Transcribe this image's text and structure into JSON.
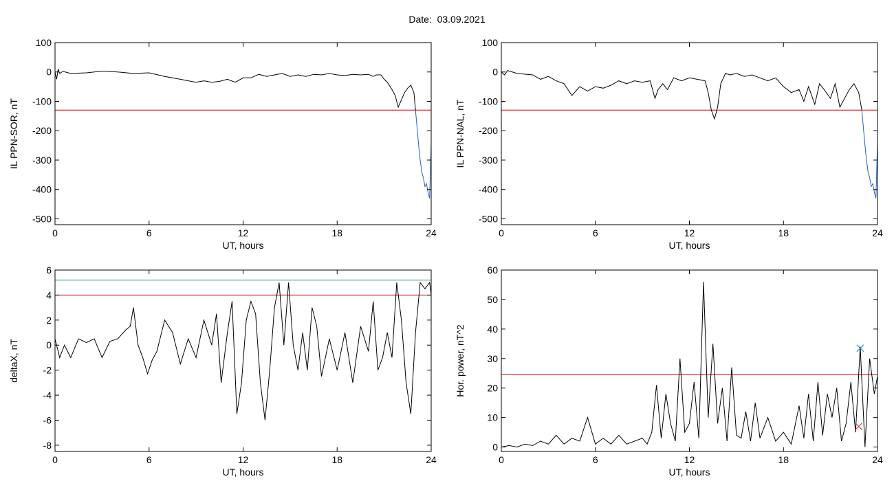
{
  "header": {
    "date_label": "Date:",
    "date_value": "03.09.2021"
  },
  "chart_data": [
    {
      "type": "line",
      "title": "",
      "xlabel": "UT, hours",
      "ylabel": "IL PPN-SOR, nT",
      "xlim": [
        0,
        24
      ],
      "ylim": [
        -520,
        100
      ],
      "xticks": [
        0,
        6,
        12,
        18,
        24
      ],
      "yticks": [
        100,
        0,
        -100,
        -200,
        -300,
        -400,
        -500
      ],
      "grid": false,
      "series": [
        {
          "color": "#000000",
          "x": [
            0,
            0.1,
            0.2,
            0.3,
            0.5,
            1,
            2,
            3,
            4,
            5,
            6,
            7,
            8,
            8.5,
            9,
            9.5,
            10,
            10.5,
            11,
            11.5,
            12,
            12.5,
            13,
            13.5,
            14,
            14.5,
            15,
            15.5,
            16,
            16.5,
            17,
            17.5,
            18,
            18.5,
            19,
            19.5,
            20,
            20.3,
            20.5,
            20.8,
            21,
            21.2,
            21.5,
            21.7,
            21.9,
            22.1,
            22.3,
            22.5,
            22.7,
            22.9,
            23
          ],
          "y": [
            0,
            -25,
            10,
            -5,
            2,
            -5,
            -3,
            3,
            0,
            -5,
            -3,
            -15,
            -25,
            -30,
            -35,
            -30,
            -35,
            -32,
            -25,
            -35,
            -20,
            -20,
            -8,
            -15,
            -10,
            -5,
            -15,
            -10,
            -15,
            -8,
            -10,
            -5,
            -10,
            -12,
            -8,
            -10,
            -8,
            -15,
            -10,
            -10,
            -25,
            -35,
            -60,
            -80,
            -120,
            -95,
            -70,
            -55,
            -45,
            -70,
            -130
          ]
        },
        {
          "color": "#1f5fcf",
          "x": [
            23,
            23.1,
            23.2,
            23.3,
            23.4,
            23.5,
            23.6,
            23.7,
            23.8,
            23.9,
            24
          ],
          "y": [
            -130,
            -190,
            -250,
            -300,
            -340,
            -360,
            -390,
            -380,
            -410,
            -430,
            -240
          ]
        }
      ],
      "hlines": [
        {
          "y": -130,
          "color": "#d00000"
        }
      ]
    },
    {
      "type": "line",
      "title": "",
      "xlabel": "UT, hours",
      "ylabel": "IL PPN-NAL, nT",
      "xlim": [
        0,
        24
      ],
      "ylim": [
        -520,
        100
      ],
      "xticks": [
        0,
        6,
        12,
        18,
        24
      ],
      "yticks": [
        100,
        0,
        -100,
        -200,
        -300,
        -400,
        -500
      ],
      "grid": false,
      "series": [
        {
          "color": "#000000",
          "x": [
            0,
            0.2,
            0.4,
            1,
            2,
            2.5,
            3,
            3.5,
            4,
            4.5,
            5,
            5.5,
            6,
            6.5,
            7,
            7.5,
            8,
            8.5,
            9,
            9.5,
            9.8,
            10,
            10.3,
            10.6,
            11,
            11.5,
            12,
            12.5,
            13,
            13.2,
            13.4,
            13.6,
            13.8,
            14,
            14.3,
            14.6,
            15,
            15.5,
            16,
            16.5,
            17,
            17.5,
            18,
            18.5,
            19,
            19.3,
            19.6,
            20,
            20.3,
            20.6,
            21,
            21.3,
            21.6,
            21.9,
            22.2,
            22.5,
            22.8,
            23
          ],
          "y": [
            0,
            -10,
            5,
            -5,
            -10,
            -25,
            -15,
            -30,
            -40,
            -80,
            -50,
            -65,
            -50,
            -55,
            -45,
            -30,
            -40,
            -30,
            -35,
            -30,
            -90,
            -60,
            -40,
            -60,
            -20,
            -30,
            -20,
            -25,
            -30,
            -70,
            -130,
            -160,
            -120,
            -40,
            -5,
            -10,
            -5,
            -15,
            -10,
            -20,
            -30,
            -20,
            -50,
            -70,
            -60,
            -100,
            -50,
            -110,
            -40,
            -60,
            -90,
            -40,
            -120,
            -90,
            -60,
            -40,
            -70,
            -130
          ]
        },
        {
          "color": "#1f5fcf",
          "x": [
            23,
            23.1,
            23.2,
            23.3,
            23.4,
            23.5,
            23.6,
            23.7,
            23.8,
            23.9,
            24
          ],
          "y": [
            -130,
            -190,
            -250,
            -300,
            -340,
            -360,
            -390,
            -380,
            -410,
            -430,
            -240
          ]
        }
      ],
      "hlines": [
        {
          "y": -130,
          "color": "#d00000"
        }
      ]
    },
    {
      "type": "line",
      "title": "",
      "xlabel": "UT, hours",
      "ylabel": "deltaX, nT",
      "xlim": [
        0,
        24
      ],
      "ylim": [
        -8.5,
        6
      ],
      "xticks": [
        0,
        6,
        12,
        18,
        24
      ],
      "yticks": [
        6,
        4,
        2,
        0,
        -2,
        -4,
        -6,
        -8
      ],
      "grid": false,
      "series": [
        {
          "color": "#000000",
          "x": [
            0,
            0.3,
            0.6,
            1,
            1.5,
            2,
            2.5,
            3,
            3.5,
            4,
            4.5,
            4.8,
            5,
            5.3,
            5.6,
            5.9,
            6.2,
            6.5,
            7,
            7.5,
            8,
            8.5,
            9,
            9.5,
            10,
            10.3,
            10.6,
            11,
            11.3,
            11.6,
            11.9,
            12.2,
            12.5,
            12.8,
            13.1,
            13.4,
            13.7,
            14,
            14.3,
            14.6,
            14.9,
            15.2,
            15.5,
            15.8,
            16.1,
            16.4,
            16.7,
            17,
            17.5,
            18,
            18.5,
            19,
            19.5,
            20,
            20.3,
            20.6,
            20.9,
            21.2,
            21.5,
            21.8,
            22.1,
            22.4,
            22.7,
            23,
            23.3,
            23.6,
            23.9,
            24
          ],
          "y": [
            0.5,
            -1,
            0,
            -1,
            0.5,
            0.2,
            0.5,
            -1,
            0.3,
            0.5,
            1.2,
            1.5,
            3,
            0,
            -1,
            -2.3,
            -1.2,
            -0.5,
            2,
            1,
            -1.5,
            0.5,
            -1,
            2,
            0,
            2.5,
            -3,
            1,
            3.5,
            -5.5,
            -3,
            2,
            3.5,
            2.5,
            -3,
            -6,
            -2,
            3,
            5,
            0,
            5,
            0,
            -2,
            1,
            -2,
            3,
            1.5,
            -2.5,
            0.5,
            -2,
            1,
            -3,
            1.5,
            -0.5,
            3.5,
            -2,
            -1,
            1,
            -1,
            5,
            2,
            -3,
            -5.5,
            1,
            5,
            4.5,
            5,
            4
          ]
        }
      ],
      "hlines": [
        {
          "y": 5.2,
          "color": "#1a8a8a"
        },
        {
          "y": 4,
          "color": "#d00000"
        }
      ]
    },
    {
      "type": "line",
      "title": "",
      "xlabel": "UT, hours",
      "ylabel": "Hor. power, nT^2",
      "xlim": [
        0,
        24
      ],
      "ylim": [
        -1.5,
        60
      ],
      "xticks": [
        0,
        6,
        12,
        18,
        24
      ],
      "yticks": [
        60,
        50,
        40,
        30,
        20,
        10,
        0
      ],
      "grid": false,
      "series": [
        {
          "color": "#000000",
          "x": [
            0,
            0.5,
            1,
            1.5,
            2,
            2.5,
            3,
            3.5,
            4,
            4.5,
            5,
            5.5,
            6,
            6.5,
            7,
            7.5,
            8,
            8.5,
            9,
            9.3,
            9.6,
            9.9,
            10.2,
            10.5,
            10.8,
            11.1,
            11.4,
            11.7,
            12,
            12.3,
            12.6,
            12.9,
            13.2,
            13.5,
            13.8,
            14.1,
            14.4,
            14.7,
            15,
            15.3,
            15.6,
            15.9,
            16.2,
            16.5,
            17,
            17.5,
            18,
            18.5,
            19,
            19.3,
            19.6,
            19.9,
            20.2,
            20.5,
            20.8,
            21.1,
            21.4,
            21.7,
            22,
            22.3,
            22.6,
            22.9,
            23.2,
            23.5,
            23.8,
            24
          ],
          "y": [
            0,
            0.5,
            0,
            1,
            0.5,
            2,
            1,
            4,
            1,
            3,
            2,
            10,
            1,
            3,
            1,
            4,
            1,
            2,
            3,
            1,
            5,
            21,
            3,
            18,
            8,
            2,
            30,
            5,
            8,
            22,
            3,
            56,
            10,
            35,
            8,
            20,
            2,
            27,
            4,
            3,
            12,
            2,
            15,
            3,
            10,
            2,
            5,
            1,
            14,
            3,
            18,
            2,
            22,
            4,
            18,
            10,
            20,
            2,
            8,
            22,
            5,
            34,
            0,
            30,
            18,
            24
          ]
        }
      ],
      "hlines": [
        {
          "y": 24.5,
          "color": "#d00000"
        }
      ],
      "markers": [
        {
          "x": 22.9,
          "y": 33.5,
          "symbol": "x",
          "color": "#1f8fcf"
        },
        {
          "x": 22.8,
          "y": 7,
          "symbol": "x",
          "color": "#d04040"
        }
      ]
    }
  ]
}
